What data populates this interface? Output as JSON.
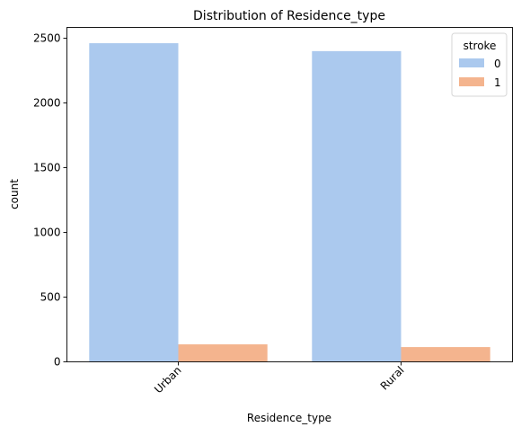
{
  "chart_data": {
    "type": "bar",
    "title": "Distribution of Residence_type",
    "xlabel": "Residence_type",
    "ylabel": "count",
    "categories": [
      "Urban",
      "Rural"
    ],
    "series": [
      {
        "name": "0",
        "values": [
          2461,
          2400
        ],
        "color": "#abc9ee"
      },
      {
        "name": "1",
        "values": [
          135,
          114
        ],
        "color": "#f4b48e"
      }
    ],
    "ylim": [
      0,
      2583
    ],
    "yticks": [
      0,
      500,
      1000,
      1500,
      2000,
      2500
    ],
    "legend": {
      "title": "stroke",
      "placement": "top-right"
    },
    "grid": false
  }
}
